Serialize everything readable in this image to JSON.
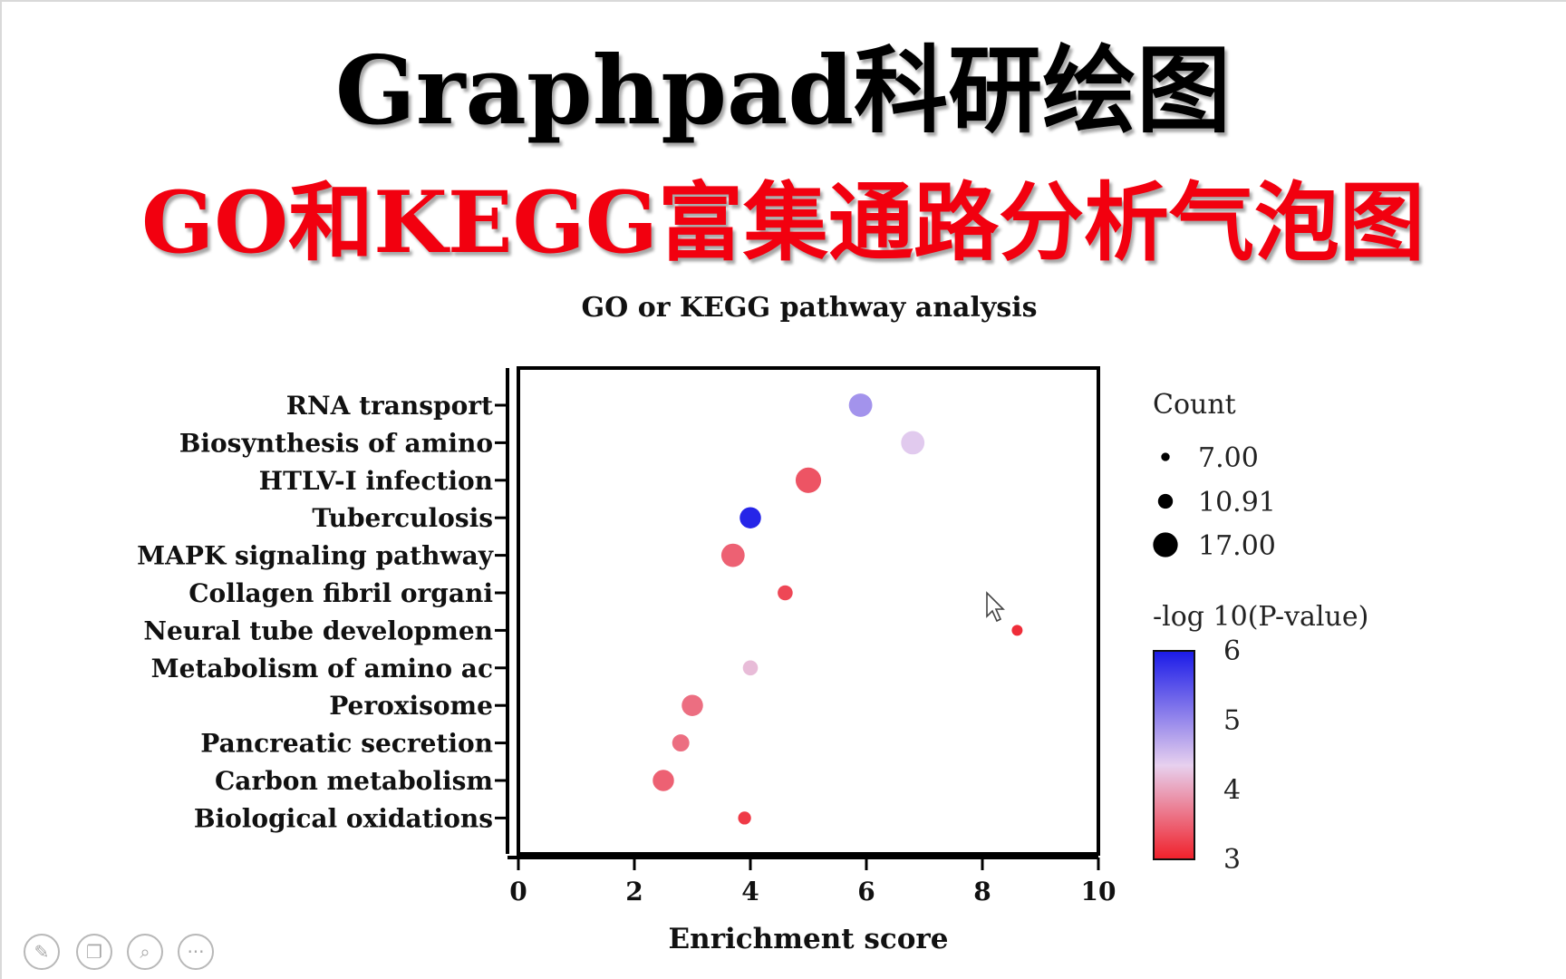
{
  "header": {
    "title": "Graphpad科研绘图",
    "subtitle": "GO和KEGG富集通路分析气泡图"
  },
  "chart_data": {
    "type": "scatter",
    "variant": "bubble",
    "title": "GO or KEGG pathway analysis",
    "xlabel": "Enrichment score",
    "ylabel": "",
    "xlim": [
      0,
      10
    ],
    "xticks": [
      0,
      2,
      4,
      6,
      8,
      10
    ],
    "categories": [
      "RNA transport",
      "Biosynthesis of amino",
      "HTLV-I infection",
      "Tuberculosis",
      "MAPK signaling pathway",
      "Collagen fibril organi",
      "Neural tube developmen",
      "Metabolism of amino ac",
      "Peroxisome",
      "Pancreatic secretion",
      "Carbon metabolism",
      "Biological oxidations"
    ],
    "points": [
      {
        "category": "RNA transport",
        "x": 5.9,
        "count": 13,
        "neglog10p": 4.9
      },
      {
        "category": "Biosynthesis of amino",
        "x": 6.8,
        "count": 13,
        "neglog10p": 4.4
      },
      {
        "category": "HTLV-I infection",
        "x": 5.0,
        "count": 14,
        "neglog10p": 3.4
      },
      {
        "category": "Tuberculosis",
        "x": 4.0,
        "count": 12,
        "neglog10p": 5.9
      },
      {
        "category": "MAPK signaling pathway",
        "x": 3.7,
        "count": 13,
        "neglog10p": 3.5
      },
      {
        "category": "Collagen fibril organi",
        "x": 4.6,
        "count": 9,
        "neglog10p": 3.3
      },
      {
        "category": "Neural tube developmen",
        "x": 8.6,
        "count": 7,
        "neglog10p": 3.1
      },
      {
        "category": "Metabolism of amino ac",
        "x": 4.0,
        "count": 9,
        "neglog10p": 4.2
      },
      {
        "category": "Peroxisome",
        "x": 3.0,
        "count": 12,
        "neglog10p": 3.6
      },
      {
        "category": "Pancreatic secretion",
        "x": 2.8,
        "count": 10,
        "neglog10p": 3.6
      },
      {
        "category": "Carbon metabolism",
        "x": 2.5,
        "count": 12,
        "neglog10p": 3.5
      },
      {
        "category": "Biological oxidations",
        "x": 3.9,
        "count": 8,
        "neglog10p": 3.2
      }
    ],
    "size_legend": {
      "title": "Count",
      "values": [
        7.0,
        10.91,
        17.0
      ],
      "labels": [
        "7.00",
        "10.91",
        "17.00"
      ]
    },
    "color_legend": {
      "title": "-log 10(P-value)",
      "min": 3,
      "max": 6,
      "ticks": [
        "6",
        "5",
        "4",
        "3"
      ],
      "colors": [
        "#f0202a",
        "#e7d0ee",
        "#1a1ae8"
      ]
    }
  },
  "toolbar": {
    "icons": [
      "pen-icon",
      "slides-icon",
      "zoom-icon",
      "more-icon"
    ],
    "glyphs": [
      "✎",
      "❐",
      "⌕",
      "···"
    ]
  }
}
